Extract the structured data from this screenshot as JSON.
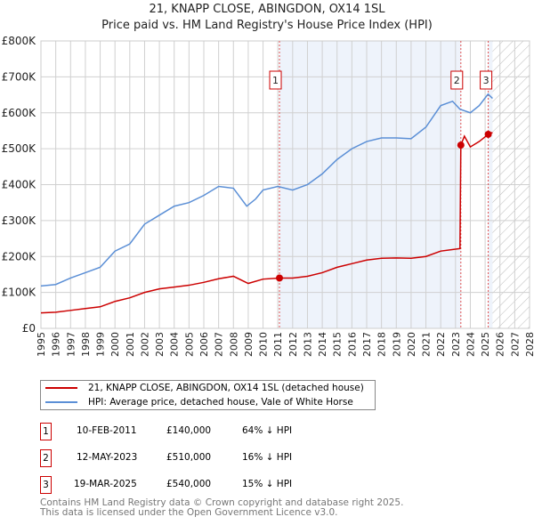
{
  "chart_data": {
    "type": "line",
    "title": "21, KNAPP CLOSE, ABINGDON, OX14 1SL",
    "subtitle": "Price paid vs. HM Land Registry's House Price Index (HPI)",
    "xlim": [
      1995,
      2028
    ],
    "ylim": [
      0,
      800000
    ],
    "x_ticks": [
      "1995",
      "1996",
      "1997",
      "1998",
      "1999",
      "2000",
      "2001",
      "2002",
      "2003",
      "2004",
      "2005",
      "2006",
      "2007",
      "2008",
      "2009",
      "2010",
      "2011",
      "2012",
      "2013",
      "2014",
      "2015",
      "2016",
      "2017",
      "2018",
      "2019",
      "2020",
      "2021",
      "2022",
      "2023",
      "2024",
      "2025",
      "2026",
      "2027",
      "2028"
    ],
    "y_ticks": [
      {
        "v": 0,
        "label": "£0"
      },
      {
        "v": 100000,
        "label": "£100K"
      },
      {
        "v": 200000,
        "label": "£200K"
      },
      {
        "v": 300000,
        "label": "£300K"
      },
      {
        "v": 400000,
        "label": "£400K"
      },
      {
        "v": 500000,
        "label": "£500K"
      },
      {
        "v": 600000,
        "label": "£600K"
      },
      {
        "v": 700000,
        "label": "£700K"
      },
      {
        "v": 800000,
        "label": "£800K"
      }
    ],
    "grid": true,
    "series": [
      {
        "name": "21, KNAPP CLOSE, ABINGDON, OX14 1SL (detached house)",
        "color": "#cc0000",
        "points": [
          [
            1995,
            43000
          ],
          [
            1996,
            45000
          ],
          [
            1997,
            50000
          ],
          [
            1998,
            55000
          ],
          [
            1999,
            60000
          ],
          [
            2000,
            75000
          ],
          [
            2001,
            85000
          ],
          [
            2002,
            100000
          ],
          [
            2003,
            110000
          ],
          [
            2004,
            115000
          ],
          [
            2005,
            120000
          ],
          [
            2006,
            128000
          ],
          [
            2007,
            138000
          ],
          [
            2008,
            145000
          ],
          [
            2009,
            125000
          ],
          [
            2010,
            137000
          ],
          [
            2011.11,
            140000
          ],
          [
            2012,
            140000
          ],
          [
            2013,
            145000
          ],
          [
            2014,
            155000
          ],
          [
            2015,
            170000
          ],
          [
            2016,
            180000
          ],
          [
            2017,
            190000
          ],
          [
            2018,
            195000
          ],
          [
            2019,
            196000
          ],
          [
            2020,
            195000
          ],
          [
            2021,
            200000
          ],
          [
            2022,
            215000
          ],
          [
            2023.3,
            222000
          ],
          [
            2023.36,
            510000
          ],
          [
            2023.6,
            535000
          ],
          [
            2024,
            505000
          ],
          [
            2024.6,
            520000
          ],
          [
            2025.21,
            540000
          ],
          [
            2025.5,
            545000
          ]
        ]
      },
      {
        "name": "HPI: Average price, detached house, Vale of White Horse",
        "color": "#5b8fd6",
        "points": [
          [
            1995,
            118000
          ],
          [
            1996,
            122000
          ],
          [
            1997,
            140000
          ],
          [
            1998,
            155000
          ],
          [
            1999,
            170000
          ],
          [
            2000,
            215000
          ],
          [
            2001,
            235000
          ],
          [
            2002,
            290000
          ],
          [
            2003,
            315000
          ],
          [
            2004,
            340000
          ],
          [
            2005,
            350000
          ],
          [
            2006,
            370000
          ],
          [
            2007,
            395000
          ],
          [
            2008,
            390000
          ],
          [
            2008.9,
            340000
          ],
          [
            2009.5,
            360000
          ],
          [
            2010,
            385000
          ],
          [
            2011,
            395000
          ],
          [
            2012,
            385000
          ],
          [
            2013,
            400000
          ],
          [
            2014,
            430000
          ],
          [
            2015,
            470000
          ],
          [
            2016,
            500000
          ],
          [
            2017,
            520000
          ],
          [
            2018,
            530000
          ],
          [
            2019,
            530000
          ],
          [
            2020,
            528000
          ],
          [
            2021,
            560000
          ],
          [
            2022,
            620000
          ],
          [
            2022.8,
            632000
          ],
          [
            2023.3,
            610000
          ],
          [
            2024,
            600000
          ],
          [
            2024.6,
            620000
          ],
          [
            2025.2,
            652000
          ],
          [
            2025.5,
            640000
          ]
        ]
      }
    ],
    "sales": [
      {
        "n": "1",
        "x": 2011.11,
        "y": 140000,
        "date": "10-FEB-2011",
        "price": "£140,000",
        "hpi": "64% ↓ HPI"
      },
      {
        "n": "2",
        "x": 2023.36,
        "y": 510000,
        "date": "12-MAY-2023",
        "price": "£510,000",
        "hpi": "16% ↓ HPI"
      },
      {
        "n": "3",
        "x": 2025.21,
        "y": 540000,
        "date": "19-MAR-2025",
        "price": "£540,000",
        "hpi": "15% ↓ HPI"
      }
    ],
    "future_from": 2025.5
  },
  "footer": [
    "Contains HM Land Registry data © Crown copyright and database right 2025.",
    "This data is licensed under the Open Government Licence v3.0."
  ]
}
